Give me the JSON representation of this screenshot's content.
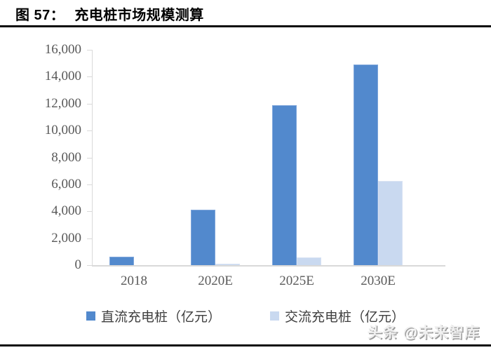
{
  "header": {
    "figure_label": "图 57：",
    "title": "充电桩市场规模测算"
  },
  "watermark": {
    "text": "头条 @未来智库"
  },
  "chart_data": {
    "type": "bar",
    "title": "充电桩市场规模测算",
    "categories": [
      "2018",
      "2020E",
      "2025E",
      "2030E"
    ],
    "series": [
      {
        "name": "直流充电桩（亿元）",
        "color": "#5289CD",
        "border_color": "#7EA6DB",
        "values": [
          650,
          4100,
          11900,
          14900
        ]
      },
      {
        "name": "交流充电桩（亿元）",
        "color": "#C9D9F0",
        "border_color": "#D8E2F3",
        "values": [
          0,
          120,
          550,
          6250
        ]
      }
    ],
    "xlabel": "",
    "ylabel": "",
    "ylim": [
      0,
      16000
    ],
    "ytick_step": 2000,
    "ytick_labels": [
      "0",
      "2,000",
      "4,000",
      "6,000",
      "8,000",
      "10,000",
      "12,000",
      "14,000",
      "16,000"
    ],
    "grid": false,
    "legend_position": "bottom",
    "axis_color": "#d9d9d9",
    "tick_label_color": "#595959"
  }
}
